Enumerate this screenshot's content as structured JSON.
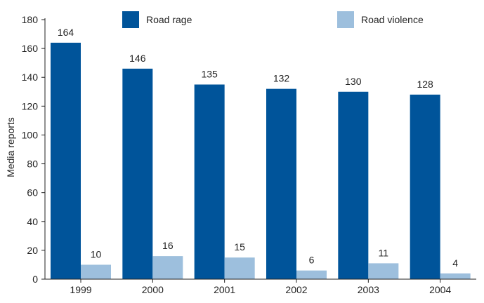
{
  "chart_data": {
    "type": "bar",
    "categories": [
      "1999",
      "2000",
      "2001",
      "2002",
      "2003",
      "2004"
    ],
    "series": [
      {
        "name": "Road rage",
        "values": [
          164,
          146,
          135,
          132,
          130,
          128
        ],
        "color": "#00549a"
      },
      {
        "name": "Road violence",
        "values": [
          10,
          16,
          15,
          6,
          11,
          4
        ],
        "color": "#9dbfdd"
      }
    ],
    "title": "",
    "xlabel": "",
    "ylabel": "Media reports",
    "ylim": [
      0,
      180
    ],
    "yticks": [
      0,
      20,
      40,
      60,
      80,
      100,
      120,
      140,
      160,
      180
    ],
    "grid": false,
    "legend_position": "top"
  }
}
